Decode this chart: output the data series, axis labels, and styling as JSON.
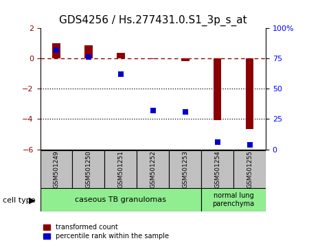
{
  "title": "GDS4256 / Hs.277431.0.S1_3p_s_at",
  "samples": [
    "GSM501249",
    "GSM501250",
    "GSM501251",
    "GSM501252",
    "GSM501253",
    "GSM501254",
    "GSM501255"
  ],
  "red_values": [
    1.0,
    0.85,
    0.38,
    -0.05,
    -0.18,
    -4.05,
    -4.65
  ],
  "blue_pct": [
    82,
    76,
    62,
    32,
    31,
    6,
    4
  ],
  "ylim_left": [
    -6,
    2
  ],
  "ylim_right": [
    0,
    100
  ],
  "yticks_left": [
    -6,
    -4,
    -2,
    0,
    2
  ],
  "yticks_right": [
    0,
    25,
    50,
    75,
    100
  ],
  "dotted_line_y": [
    -2,
    -4
  ],
  "group1_label": "caseous TB granulomas",
  "group2_label": "normal lung\nparenchyma",
  "cell_type_label": "cell type",
  "legend1_label": "transformed count",
  "legend2_label": "percentile rank within the sample",
  "bar_color": "#8B0000",
  "blue_color": "#0000CC",
  "group1_color": "#90EE90",
  "group2_color": "#90EE90",
  "label_box_color": "#C0C0C0",
  "title_fontsize": 11,
  "tick_fontsize": 8,
  "bar_width": 0.25
}
